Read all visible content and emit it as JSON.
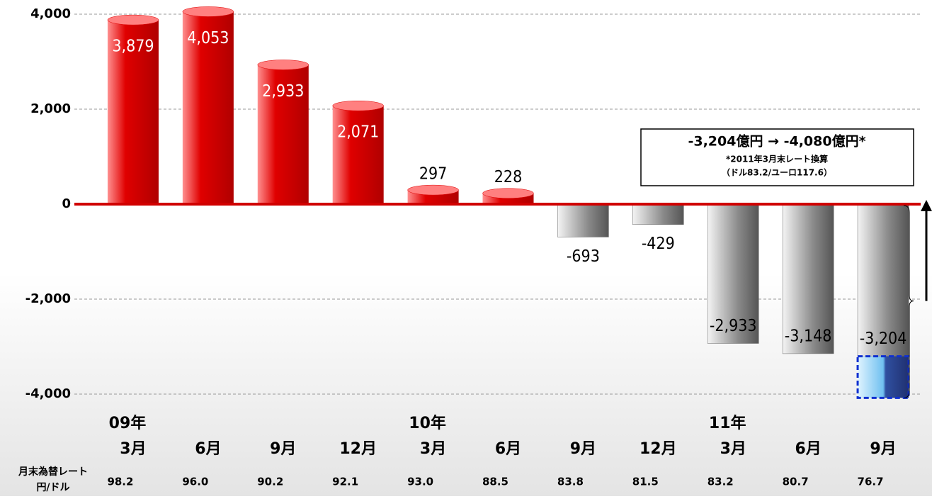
{
  "chart_data": {
    "type": "bar",
    "categories": [
      "3月",
      "6月",
      "9月",
      "12月",
      "3月",
      "6月",
      "9月",
      "12月",
      "3月",
      "6月",
      "9月"
    ],
    "years": [
      "09年",
      null,
      null,
      null,
      "10年",
      null,
      null,
      null,
      "11年",
      null,
      null
    ],
    "series": [
      {
        "values": [
          3879,
          4053,
          2933,
          2071,
          297,
          228,
          -693,
          -429,
          -2933,
          -3148,
          -3204
        ],
        "value_labels": [
          "3,879",
          "4,053",
          "2,933",
          "2,071",
          "297",
          "228",
          "-693",
          "-429",
          "-2,933",
          "-3,148",
          "-3,204"
        ]
      }
    ],
    "positive_color": "#e00000",
    "negative_color": "#8a8a8a",
    "ylim": [
      -4000,
      4000
    ],
    "yticks": [
      {
        "value": -4000,
        "label": "-4,000"
      },
      {
        "value": -2000,
        "label": "-2,000"
      },
      0,
      {
        "value": 2000,
        "label": "2,000"
      },
      {
        "value": 4000,
        "label": "4,000"
      }
    ],
    "grid": true,
    "adjusted_value": -4080,
    "annotation": {
      "title": "-3,204億円 → -4,080億円*",
      "note1": "*2011年3月末レート換算",
      "note2": "（ドル83.2/ユーロ117.6）"
    },
    "rate_label": [
      "月末為替レート",
      "円/ドル"
    ],
    "rates": [
      "98.2",
      "96.0",
      "90.2",
      "92.1",
      "93.0",
      "88.5",
      "83.8",
      "81.5",
      "83.2",
      "80.7",
      "76.7"
    ]
  }
}
